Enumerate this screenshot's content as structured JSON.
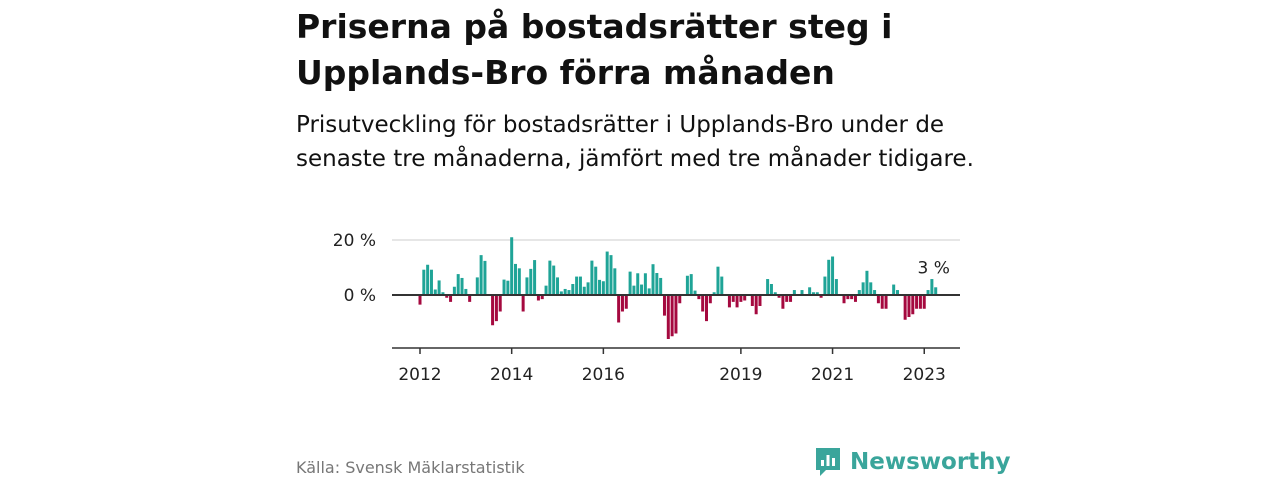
{
  "title": "Priserna på bostadsrätter steg i Upplands-Bro förra månaden",
  "subtitle": "Prisutveckling för bostadsrätter i Upplands-Bro under de senaste tre månaderna, jämfört med tre månader tidigare.",
  "source": "Källa: Svensk Mäklarstatistik",
  "logo": {
    "text": "Newsworthy",
    "icon": "bar-chart-speech-bubble-icon"
  },
  "colors": {
    "positive": "#1fa497",
    "negative": "#a5093f",
    "axis": "#333333",
    "grid": "#dddddd"
  },
  "chart_data": {
    "type": "bar",
    "title": "",
    "xlabel": "",
    "ylabel": "",
    "start": "2012-01",
    "frequency": "monthly",
    "ylim": [
      -19,
      20
    ],
    "yticks": [
      {
        "value": 0,
        "label": "0 %"
      },
      {
        "value": 20,
        "label": "20 %"
      }
    ],
    "xticks": [
      {
        "index": 0,
        "label": "2012"
      },
      {
        "index": 24,
        "label": "2014"
      },
      {
        "index": 48,
        "label": "2016"
      },
      {
        "index": 84,
        "label": "2019"
      },
      {
        "index": 108,
        "label": "2021"
      },
      {
        "index": 132,
        "label": "2023"
      }
    ],
    "values": [
      -3.5,
      9.2,
      11,
      9.2,
      2,
      5.3,
      1,
      -1,
      -2.5,
      3,
      7.6,
      6.2,
      2.2,
      -2.5,
      null,
      6.4,
      14.5,
      12.4,
      null,
      -11,
      -9.5,
      -6,
      5.6,
      5.2,
      21,
      11.3,
      9.7,
      -6,
      6.4,
      9.5,
      12.7,
      -2,
      -1.5,
      3.4,
      12.5,
      10.7,
      6.4,
      1.3,
      2.2,
      1.8,
      4,
      6.7,
      6.7,
      3,
      4.6,
      12.5,
      10.3,
      5.5,
      5,
      15.8,
      14.5,
      9.7,
      -10,
      -6,
      -5,
      8.5,
      3.4,
      7.9,
      3.8,
      7.9,
      2.4,
      11.2,
      8,
      6.2,
      -7.5,
      -16,
      -15,
      -14,
      -3,
      0.3,
      7,
      7.6,
      1.6,
      -1.5,
      -6,
      -9.5,
      -3,
      1,
      10.3,
      6.7,
      null,
      -4.5,
      -2.5,
      -4.5,
      -2.5,
      -2,
      null,
      -4,
      -7,
      -4,
      null,
      5.8,
      4,
      1,
      -1,
      -5,
      -2.5,
      -2.5,
      1.8,
      null,
      1.8,
      null,
      2.8,
      1,
      1,
      -1,
      6.7,
      12.8,
      14,
      5.8,
      null,
      -3,
      -1.5,
      -1.5,
      -2.5,
      1.8,
      4.6,
      8.8,
      4.6,
      1.8,
      -3,
      -5,
      -5,
      null,
      3.8,
      1.8,
      null,
      -9,
      -8,
      -7,
      -5,
      -5,
      -5,
      1.8,
      5.8,
      2.8
    ],
    "annotation": {
      "index": 135,
      "label": "3 %"
    }
  }
}
